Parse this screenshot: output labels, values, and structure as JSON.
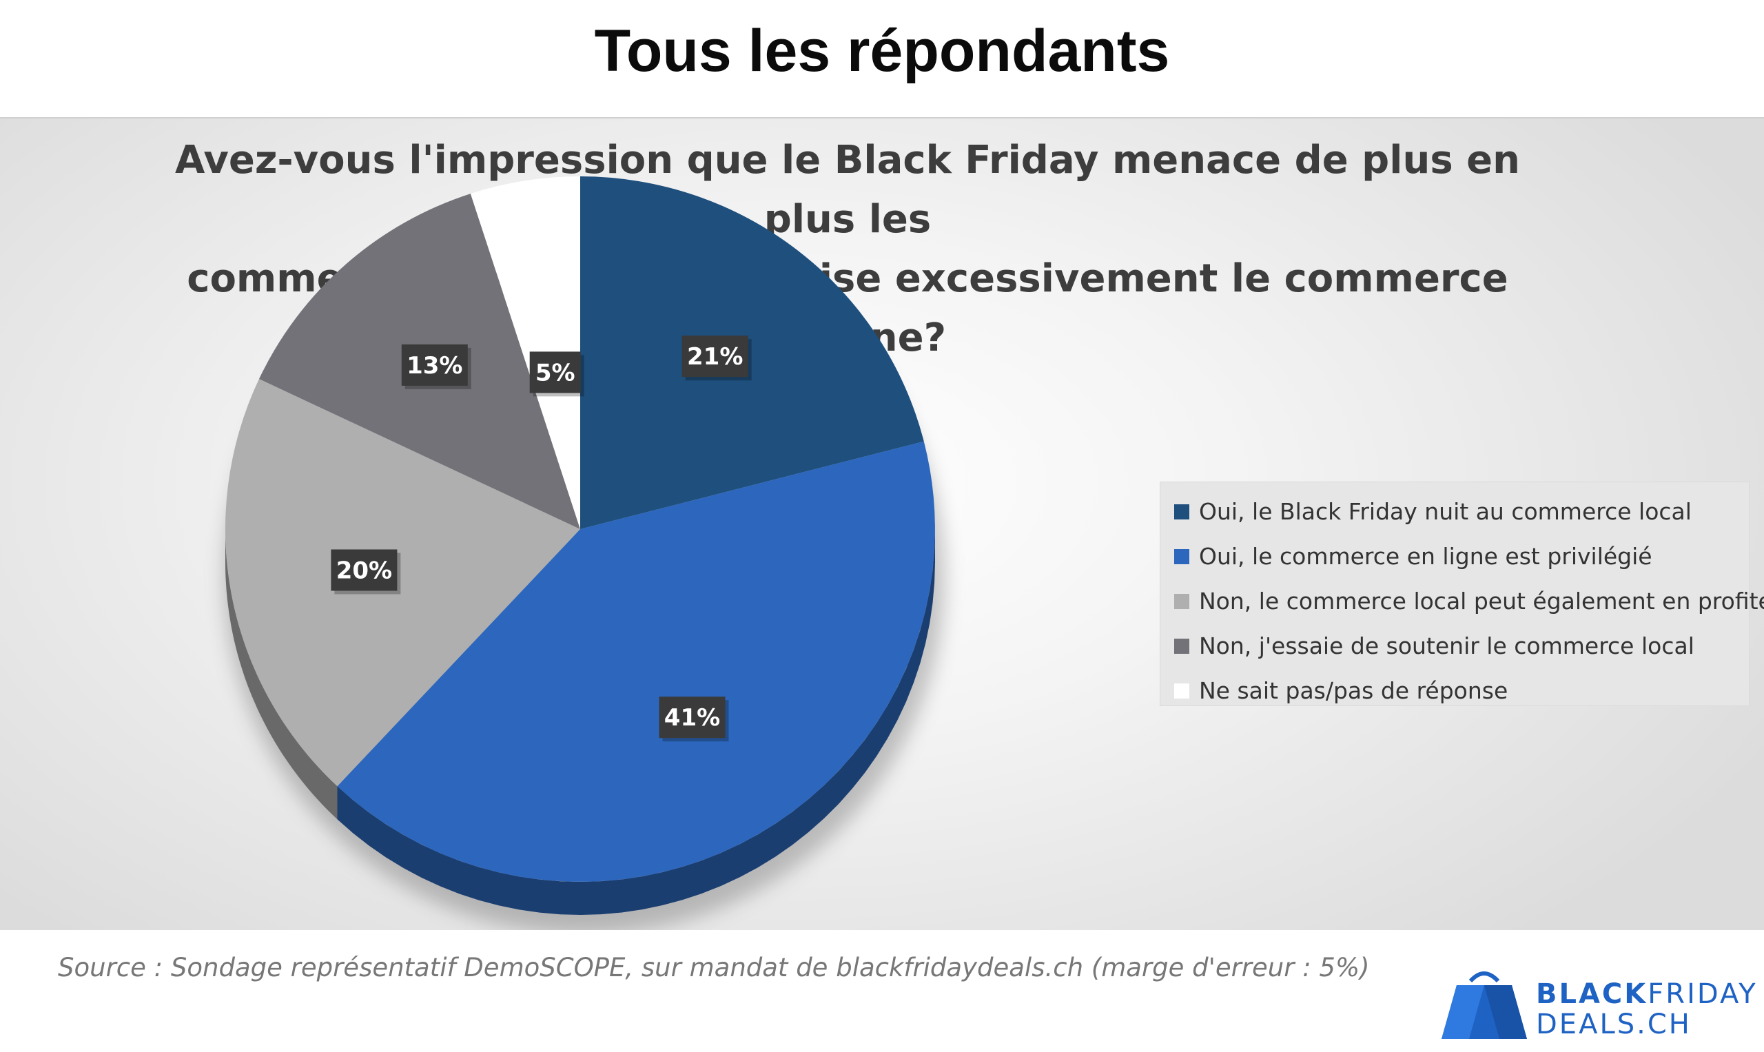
{
  "page": {
    "title": "Tous les répondants"
  },
  "chart_data": {
    "type": "pie",
    "title": "Avez-vous l'impression que le Black Friday menace de plus en plus les commerçants locaux et favorise excessivement le commerce en ligne?",
    "title_lines": [
      "Avez-vous l'impression que le Black Friday menace de plus en plus les",
      "commerçants locaux et favorise excessivement le commerce en ligne?"
    ],
    "legend_position": "right",
    "slices": [
      {
        "label": "Oui, le Black Friday nuit au commerce local",
        "value": 21,
        "data_label": "21%",
        "color": "#1e4f7d"
      },
      {
        "label": "Oui, le commerce en ligne est privilégié",
        "value": 41,
        "data_label": "41%",
        "color": "#2d67bd"
      },
      {
        "label": "Non, le commerce local peut également en profiter",
        "value": 20,
        "data_label": "20%",
        "color": "#afafaf"
      },
      {
        "label": "Non, j'essaie de soutenir le commerce local",
        "value": 13,
        "data_label": "13%",
        "color": "#737278"
      },
      {
        "label": "Ne sait pas/pas de réponse",
        "value": 5,
        "data_label": "5%",
        "color": "#ffffff"
      }
    ]
  },
  "source": {
    "text": "Source : Sondage représentatif DemoSCOPE, sur mandat de blackfridaydeals.ch (marge d'erreur : 5%)"
  },
  "logo": {
    "line1_bold": "BLACK",
    "line1_rest": "FRIDAY",
    "line2": "DEALS.CH",
    "icon": "shopping-bag-icon",
    "color": "#1e62c4"
  }
}
